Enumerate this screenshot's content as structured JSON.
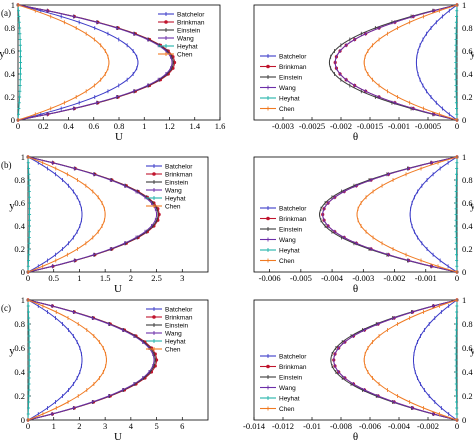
{
  "chart_data": [
    {
      "panel_tag": "(a)",
      "type": "line",
      "xlabel": "U",
      "ylabel": "y",
      "xlim": [
        0,
        1.6
      ],
      "ylim": [
        0,
        1
      ],
      "xticks": [
        "0",
        "0.2",
        "0.4",
        "0.6",
        "0.8",
        "1",
        "1.2",
        "1.4",
        "1.6"
      ],
      "yticks": [
        "0",
        "0.2",
        "0.4",
        "0.6",
        "0.8",
        "1"
      ],
      "y_axis_side": "left",
      "legend_position": "top-right",
      "series": [
        {
          "name": "Batchelor",
          "color": "#3b3bc8",
          "marker": "plus",
          "peak": 0.95
        },
        {
          "name": "Brinkman",
          "color": "#c0142d",
          "marker": "circle",
          "peak": 1.24
        },
        {
          "name": "Einstein",
          "color": "#3a3a3a",
          "marker": "plus",
          "peak": 1.23
        },
        {
          "name": "Wang",
          "color": "#6c2fa8",
          "marker": "plus",
          "peak": 1.22
        },
        {
          "name": "Heyhat",
          "color": "#20b2aa",
          "marker": "tick",
          "peak": 0.02
        },
        {
          "name": "Chen",
          "color": "#f07a22",
          "marker": "plus",
          "peak": 0.72
        }
      ]
    },
    {
      "panel_tag": "",
      "type": "line",
      "xlabel": "θ",
      "ylabel": "y",
      "xlim": [
        -0.0035,
        0
      ],
      "ylim": [
        0,
        1
      ],
      "xticks": [
        "-0.003",
        "-0.0025",
        "-0.002",
        "-0.0015",
        "-0.001",
        "-0.0005",
        "0"
      ],
      "yticks": [
        "0",
        "0.2",
        "0.4",
        "0.6",
        "0.8",
        "1"
      ],
      "y_axis_side": "right",
      "legend_position": "bottom-left",
      "series": [
        {
          "name": "Batchelor",
          "color": "#3b3bc8",
          "marker": "plus",
          "peak": -0.0007
        },
        {
          "name": "Brinkman",
          "color": "#c0142d",
          "marker": "circle",
          "peak": -0.0021
        },
        {
          "name": "Einstein",
          "color": "#3a3a3a",
          "marker": "plus",
          "peak": -0.0022
        },
        {
          "name": "Wang",
          "color": "#6c2fa8",
          "marker": "plus",
          "peak": -0.0021
        },
        {
          "name": "Heyhat",
          "color": "#20b2aa",
          "marker": "tick",
          "peak": -2e-05
        },
        {
          "name": "Chen",
          "color": "#f07a22",
          "marker": "plus",
          "peak": -0.0016
        }
      ]
    },
    {
      "panel_tag": "(b)",
      "type": "line",
      "xlabel": "U",
      "ylabel": "y",
      "xlim": [
        0,
        3.5
      ],
      "ylim": [
        0,
        1
      ],
      "xticks": [
        "0",
        "0.5",
        "1",
        "1.5",
        "2",
        "2.5",
        "3"
      ],
      "yticks": [
        "0",
        "0.2",
        "0.4",
        "0.6",
        "0.8",
        "1"
      ],
      "y_axis_side": "left",
      "legend_position": "top-right",
      "series": [
        {
          "name": "Batchelor",
          "color": "#3b3bc8",
          "marker": "plus",
          "peak": 1.05
        },
        {
          "name": "Brinkman",
          "color": "#c0142d",
          "marker": "circle",
          "peak": 2.55
        },
        {
          "name": "Einstein",
          "color": "#3a3a3a",
          "marker": "plus",
          "peak": 2.53
        },
        {
          "name": "Wang",
          "color": "#6c2fa8",
          "marker": "plus",
          "peak": 2.5
        },
        {
          "name": "Heyhat",
          "color": "#20b2aa",
          "marker": "tick",
          "peak": 0.03
        },
        {
          "name": "Chen",
          "color": "#f07a22",
          "marker": "plus",
          "peak": 1.5
        }
      ]
    },
    {
      "panel_tag": "",
      "type": "line",
      "xlabel": "θ",
      "ylabel": "y",
      "xlim": [
        -0.0065,
        0
      ],
      "ylim": [
        0,
        1
      ],
      "xticks": [
        "-0.006",
        "-0.005",
        "-0.004",
        "-0.003",
        "-0.002",
        "-0.001",
        "0"
      ],
      "yticks": [
        "0",
        "0.2",
        "0.4",
        "0.6",
        "0.8",
        "1"
      ],
      "y_axis_side": "right",
      "legend_position": "bottom-left",
      "series": [
        {
          "name": "Batchelor",
          "color": "#3b3bc8",
          "marker": "plus",
          "peak": -0.0015
        },
        {
          "name": "Brinkman",
          "color": "#c0142d",
          "marker": "circle",
          "peak": -0.0043
        },
        {
          "name": "Einstein",
          "color": "#3a3a3a",
          "marker": "plus",
          "peak": -0.0044
        },
        {
          "name": "Wang",
          "color": "#6c2fa8",
          "marker": "plus",
          "peak": -0.0043
        },
        {
          "name": "Heyhat",
          "color": "#20b2aa",
          "marker": "tick",
          "peak": -3e-05
        },
        {
          "name": "Chen",
          "color": "#f07a22",
          "marker": "plus",
          "peak": -0.0032
        }
      ]
    },
    {
      "panel_tag": "(c)",
      "type": "line",
      "xlabel": "U",
      "ylabel": "y",
      "xlim": [
        0,
        7
      ],
      "ylim": [
        0,
        1
      ],
      "xticks": [
        "0",
        "1",
        "2",
        "3",
        "4",
        "5",
        "6"
      ],
      "yticks": [
        "0",
        "0.2",
        "0.4",
        "0.6",
        "0.8",
        "1"
      ],
      "y_axis_side": "left",
      "legend_position": "top-right",
      "series": [
        {
          "name": "Batchelor",
          "color": "#3b3bc8",
          "marker": "plus",
          "peak": 2.1
        },
        {
          "name": "Brinkman",
          "color": "#c0142d",
          "marker": "circle",
          "peak": 5.0
        },
        {
          "name": "Einstein",
          "color": "#3a3a3a",
          "marker": "plus",
          "peak": 4.95
        },
        {
          "name": "Wang",
          "color": "#6c2fa8",
          "marker": "plus",
          "peak": 4.9
        },
        {
          "name": "Heyhat",
          "color": "#20b2aa",
          "marker": "tick",
          "peak": 0.05
        },
        {
          "name": "Chen",
          "color": "#f07a22",
          "marker": "plus",
          "peak": 3.05
        }
      ]
    },
    {
      "panel_tag": "",
      "type": "line",
      "xlabel": "θ",
      "ylabel": "y",
      "xlim": [
        -0.014,
        0
      ],
      "ylim": [
        0,
        1
      ],
      "xticks": [
        "-0.014",
        "-0.012",
        "-0.01",
        "-0.008",
        "-0.006",
        "-0.004",
        "-0.002",
        "0"
      ],
      "yticks": [
        "0",
        "0.2",
        "0.4",
        "0.6",
        "0.8",
        "1"
      ],
      "y_axis_side": "right",
      "legend_position": "bottom-left",
      "series": [
        {
          "name": "Batchelor",
          "color": "#3b3bc8",
          "marker": "plus",
          "peak": -0.003
        },
        {
          "name": "Brinkman",
          "color": "#c0142d",
          "marker": "circle",
          "peak": -0.0085
        },
        {
          "name": "Einstein",
          "color": "#3a3a3a",
          "marker": "plus",
          "peak": -0.0087
        },
        {
          "name": "Wang",
          "color": "#6c2fa8",
          "marker": "plus",
          "peak": -0.0085
        },
        {
          "name": "Heyhat",
          "color": "#20b2aa",
          "marker": "tick",
          "peak": -6e-05
        },
        {
          "name": "Chen",
          "color": "#f07a22",
          "marker": "plus",
          "peak": -0.0064
        }
      ]
    }
  ]
}
